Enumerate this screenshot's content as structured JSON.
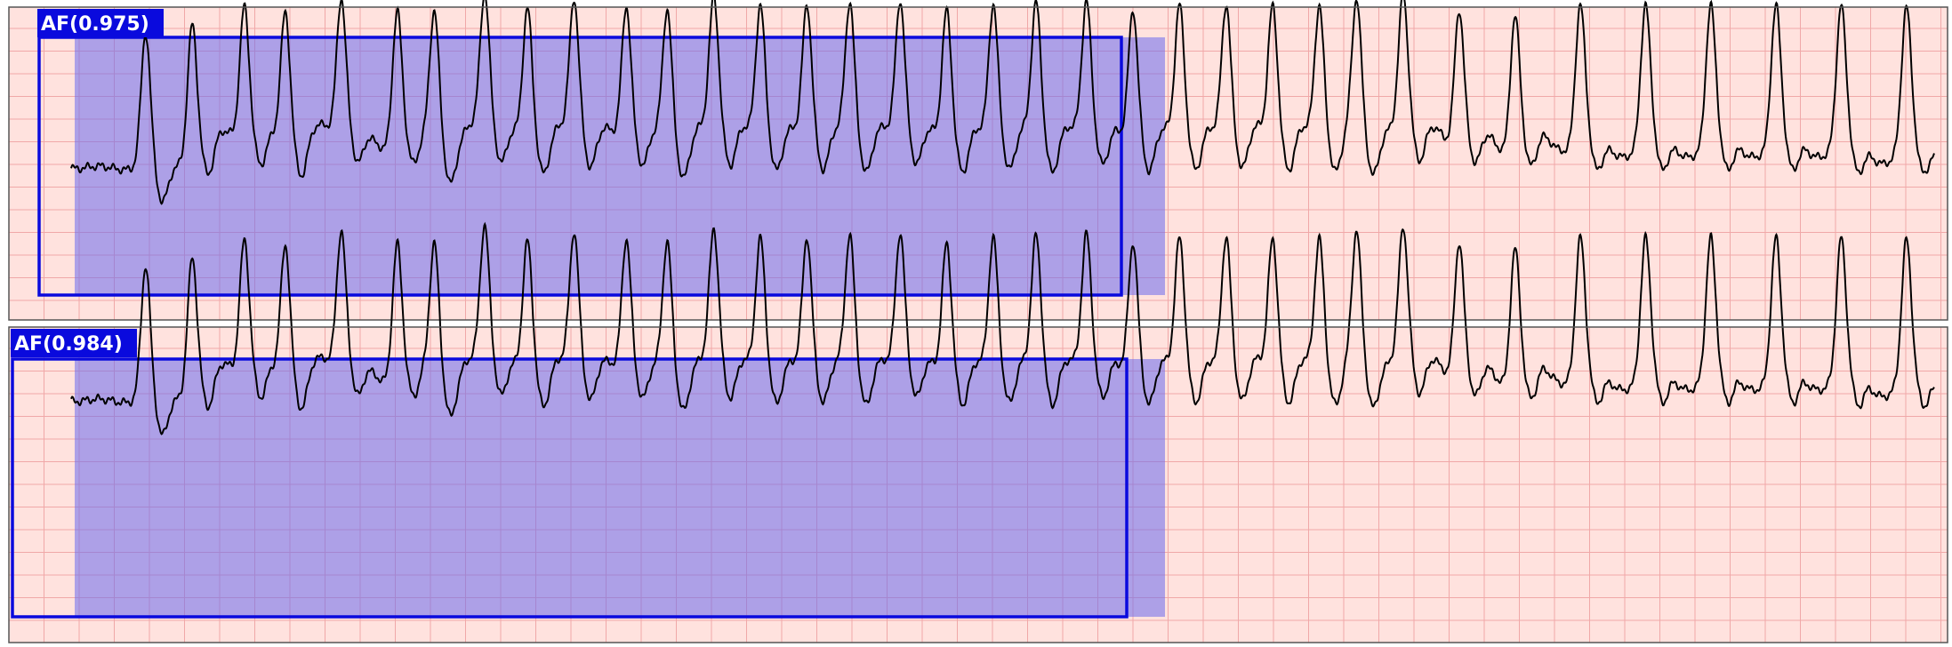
{
  "colors": {
    "background": "#ffe2de",
    "grid": "#f0a8a8",
    "frame": "#555555",
    "trace": "#000000",
    "box_edge": "#0a0add",
    "box_fill": "#6a6aee",
    "label_bg": "#0a0add",
    "label_text": "#ffffff"
  },
  "panels": [
    {
      "detection": {
        "label": "AF(0.975)",
        "class": "AF",
        "confidence": 0.975
      },
      "beats": [
        0.04,
        0.065,
        0.093,
        0.115,
        0.145,
        0.175,
        0.195,
        0.222,
        0.245,
        0.27,
        0.298,
        0.32,
        0.345,
        0.37,
        0.395,
        0.418,
        0.445,
        0.47,
        0.495,
        0.518,
        0.545,
        0.57,
        0.595,
        0.62,
        0.645,
        0.67,
        0.69,
        0.715,
        0.745,
        0.775,
        0.81,
        0.845,
        0.88,
        0.915,
        0.95,
        0.985
      ]
    },
    {
      "detection": {
        "label": "AF(0.984)",
        "class": "AF",
        "confidence": 0.984
      },
      "beats": [
        0.04,
        0.065,
        0.093,
        0.115,
        0.145,
        0.175,
        0.195,
        0.222,
        0.245,
        0.27,
        0.298,
        0.32,
        0.345,
        0.37,
        0.395,
        0.418,
        0.445,
        0.47,
        0.495,
        0.518,
        0.545,
        0.57,
        0.595,
        0.62,
        0.645,
        0.67,
        0.69,
        0.715,
        0.745,
        0.775,
        0.81,
        0.845,
        0.88,
        0.915,
        0.95,
        0.985
      ]
    }
  ]
}
